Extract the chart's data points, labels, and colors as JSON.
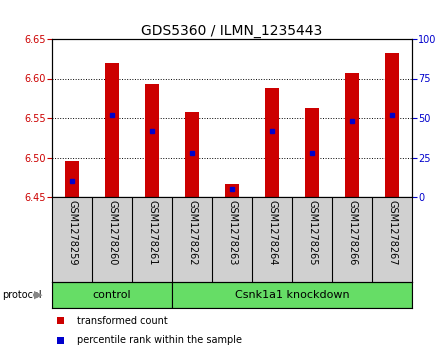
{
  "title": "GDS5360 / ILMN_1235443",
  "samples": [
    "GSM1278259",
    "GSM1278260",
    "GSM1278261",
    "GSM1278262",
    "GSM1278263",
    "GSM1278264",
    "GSM1278265",
    "GSM1278266",
    "GSM1278267"
  ],
  "bar_heights": [
    6.495,
    6.62,
    6.593,
    6.558,
    6.466,
    6.588,
    6.563,
    6.607,
    6.632
  ],
  "bar_base": 6.45,
  "percentile_values": [
    10,
    52,
    42,
    28,
    5,
    42,
    28,
    48,
    52
  ],
  "ylim_left": [
    6.45,
    6.65
  ],
  "ylim_right": [
    0,
    100
  ],
  "yticks_left": [
    6.45,
    6.5,
    6.55,
    6.6,
    6.65
  ],
  "yticks_right": [
    0,
    25,
    50,
    75,
    100
  ],
  "bar_color": "#cc0000",
  "percentile_color": "#0000cc",
  "bar_width": 0.35,
  "protocol_groups": [
    {
      "label": "control",
      "start": 0,
      "end": 3
    },
    {
      "label": "Csnk1a1 knockdown",
      "start": 3,
      "end": 9
    }
  ],
  "protocol_label": "protocol",
  "label_bg_color": "#d0d0d0",
  "green_color": "#66dd66",
  "xlabel_color": "#cc0000",
  "ylabel_right_color": "#0000cc",
  "plot_bg_color": "#ffffff",
  "legend_items": [
    {
      "label": "transformed count",
      "color": "#cc0000"
    },
    {
      "label": "percentile rank within the sample",
      "color": "#0000cc"
    }
  ],
  "title_fontsize": 10,
  "tick_fontsize": 7,
  "label_fontsize": 7,
  "proto_fontsize": 8,
  "legend_fontsize": 8
}
